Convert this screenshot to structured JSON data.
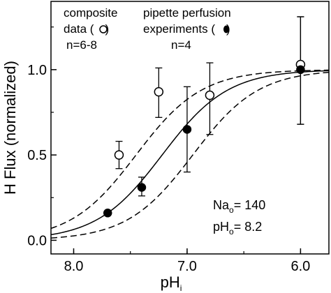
{
  "chart_data": {
    "type": "scatter",
    "xlabel": "pH",
    "xlabel_sub": "i",
    "ylabel": "H Flux (normalized)",
    "xlim": [
      8.2,
      5.75
    ],
    "ylim": [
      -0.08,
      1.4
    ],
    "x_reversed": true,
    "x_ticks": [
      8.0,
      7.0,
      6.0
    ],
    "x_tick_labels": [
      "8.0",
      "7.0",
      "6.0"
    ],
    "y_ticks": [
      0.0,
      0.5,
      1.0
    ],
    "y_tick_labels": [
      "0.0",
      "0.5",
      "1.0"
    ],
    "grid": false,
    "series": [
      {
        "name": "composite data",
        "marker": "open-circle",
        "x": [
          7.6,
          7.25,
          6.8,
          6.0
        ],
        "y": [
          0.5,
          0.87,
          0.85,
          1.03
        ],
        "err_low": [
          0.42,
          0.72,
          0.62,
          0.68
        ],
        "err_high": [
          0.58,
          1.01,
          1.04,
          1.31
        ]
      },
      {
        "name": "pipette perfusion experiments",
        "marker": "filled-circle",
        "x": [
          7.7,
          7.4,
          7.0,
          6.0
        ],
        "y": [
          0.16,
          0.31,
          0.65,
          1.0
        ],
        "err_low": [
          0.16,
          0.26,
          0.4,
          0.68
        ],
        "err_high": [
          0.16,
          0.37,
          0.9,
          1.31
        ]
      }
    ],
    "curves": [
      {
        "style": "dashed",
        "pK": 7.45,
        "n": 1.5
      },
      {
        "style": "solid",
        "pK": 7.22,
        "n": 1.5
      },
      {
        "style": "dashed",
        "pK": 6.95,
        "n": 1.5
      }
    ],
    "annotations": {
      "composite_line1": "composite",
      "composite_line2": "data (",
      "composite_line2_end": ")",
      "composite_n": "n=6-8",
      "pipette_line1": "pipette perfusion",
      "pipette_line2": "experiments (",
      "pipette_line2_end": ")",
      "pipette_n": "n=4",
      "na_label": "Na",
      "na_sub": "o",
      "na_value": "= 140",
      "ph_label": "pH",
      "ph_sub": "o",
      "ph_value": "= 8.2"
    }
  }
}
